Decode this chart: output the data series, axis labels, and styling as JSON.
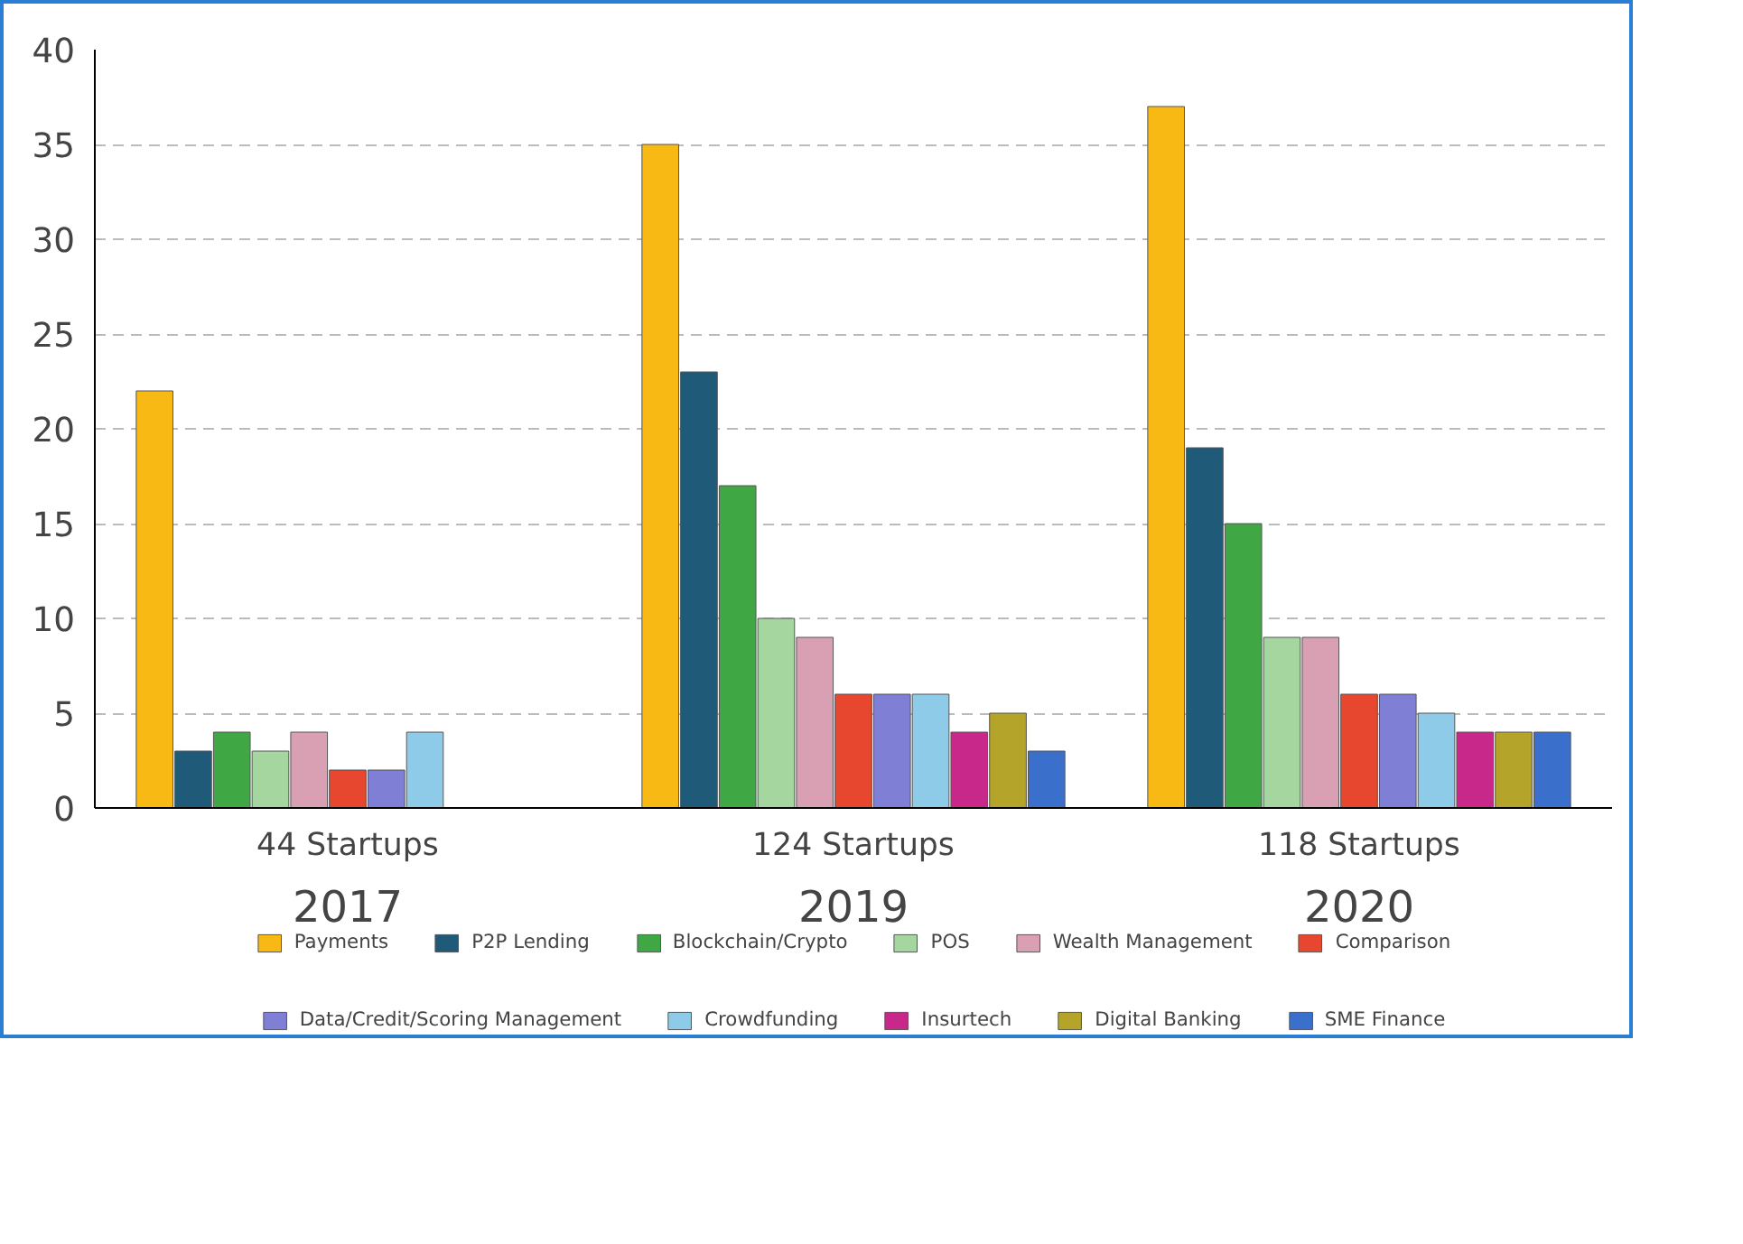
{
  "chart_data": {
    "type": "bar",
    "categories": [
      "2017",
      "2019",
      "2020"
    ],
    "annotations": [
      "44 Startups",
      "124 Startups",
      "118 Startups"
    ],
    "series": [
      {
        "name": "Payments",
        "color": "#f9b915",
        "values": [
          22,
          35,
          37
        ]
      },
      {
        "name": "P2P Lending",
        "color": "#1f5a78",
        "values": [
          3,
          23,
          19
        ]
      },
      {
        "name": "Blockchain/Crypto",
        "color": "#3fa844",
        "values": [
          4,
          17,
          15
        ]
      },
      {
        "name": "POS",
        "color": "#a6d6a0",
        "values": [
          3,
          10,
          9
        ]
      },
      {
        "name": "Wealth Management",
        "color": "#d9a0b4",
        "values": [
          4,
          9,
          9
        ]
      },
      {
        "name": "Comparison",
        "color": "#e8472f",
        "values": [
          2,
          6,
          6
        ]
      },
      {
        "name": "Data/Credit/Scoring Management",
        "color": "#7f7fd6",
        "values": [
          2,
          6,
          6
        ]
      },
      {
        "name": "Crowdfunding",
        "color": "#8ecbe8",
        "values": [
          4,
          6,
          5
        ]
      },
      {
        "name": "Insurtech",
        "color": "#c8288a",
        "values": [
          null,
          4,
          4
        ]
      },
      {
        "name": "Digital Banking",
        "color": "#b5a42a",
        "values": [
          null,
          5,
          4
        ]
      },
      {
        "name": "SME Finance",
        "color": "#3a6fcc",
        "values": [
          null,
          3,
          4
        ]
      }
    ],
    "ylim": [
      0,
      40
    ],
    "yticks": [
      0,
      5,
      10,
      15,
      20,
      25,
      30,
      35,
      40
    ],
    "grid": "y",
    "legend": "bottom"
  }
}
